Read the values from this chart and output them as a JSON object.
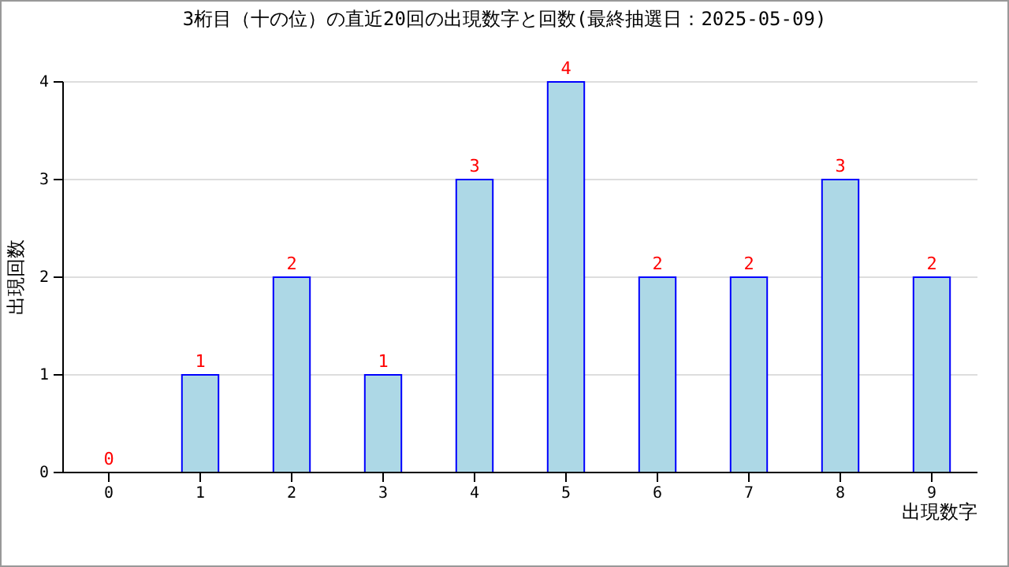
{
  "chart_data": {
    "type": "bar",
    "title": "3桁目（十の位）の直近20回の出現数字と回数(最終抽選日：2025-05-09)",
    "xlabel": "出現数字",
    "ylabel": "出現回数",
    "categories": [
      "0",
      "1",
      "2",
      "3",
      "4",
      "5",
      "6",
      "7",
      "8",
      "9"
    ],
    "values": [
      0,
      1,
      2,
      1,
      3,
      4,
      2,
      2,
      3,
      2
    ],
    "color": "#add8e6",
    "ylim": [
      0,
      4
    ],
    "yticks": [
      0,
      1,
      2,
      3,
      4
    ],
    "grid": "y",
    "data_labels": true
  }
}
